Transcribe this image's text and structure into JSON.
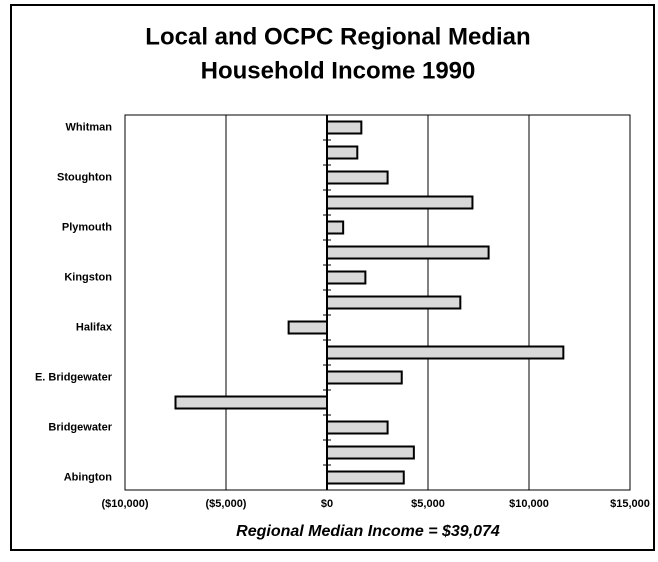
{
  "chart_data": {
    "type": "hbar",
    "title": [
      "Local and OCPC Regional Median",
      "Household Income 1990"
    ],
    "x_label": "Regional Median Income = $39,074",
    "categories": [
      "Whitman",
      null,
      "Stoughton",
      null,
      "Plymouth",
      null,
      "Kingston",
      null,
      "Halifax",
      null,
      "E. Bridgewater",
      null,
      "Bridgewater",
      null,
      "Abington"
    ],
    "values": [
      1700,
      1500,
      3000,
      7200,
      800,
      8000,
      1900,
      6600,
      -1900,
      11700,
      3700,
      -7500,
      3000,
      4300,
      3800
    ],
    "color": "#d9d9d9",
    "xlim": [
      -10000,
      15000
    ],
    "xticks": [
      {
        "value": -10000,
        "label": "($10,000)"
      },
      {
        "value": -5000,
        "label": "($5,000)"
      },
      {
        "value": 0,
        "label": "$0"
      },
      {
        "value": 5000,
        "label": "$5,000"
      },
      {
        "value": 10000,
        "label": "$10,000"
      },
      {
        "value": 15000,
        "label": "$15,000"
      }
    ],
    "grid": true
  }
}
